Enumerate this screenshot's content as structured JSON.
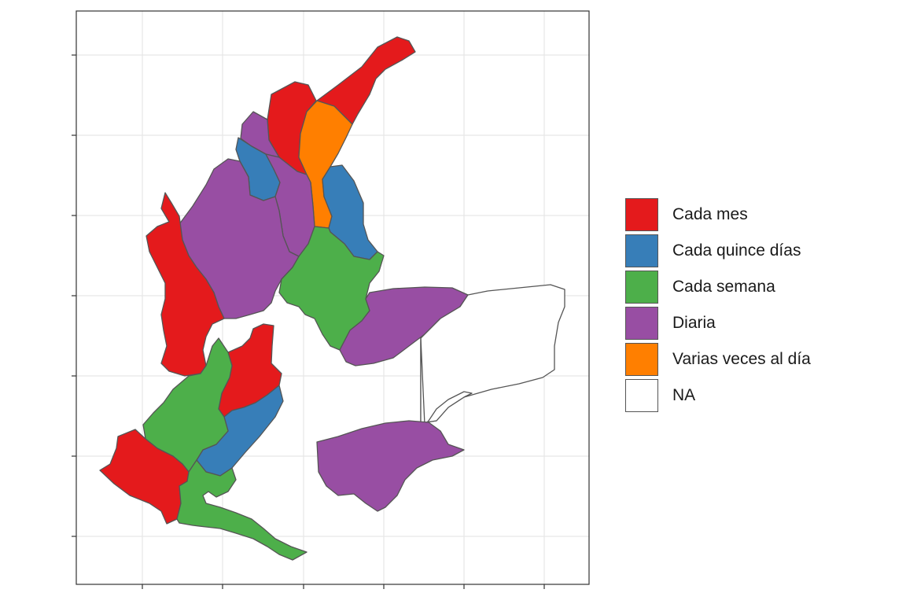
{
  "map": {
    "type": "choropleth",
    "x_ticks": 6,
    "y_ticks": 7,
    "grid": true,
    "region_border_color": "#555555",
    "regions": [
      {
        "category": "Cada mes",
        "color": "#E41A1C"
      },
      {
        "category": "Cada mes",
        "color": "#E41A1C"
      },
      {
        "category": "Varias veces al día",
        "color": "#FF7F00"
      },
      {
        "category": "Diaria",
        "color": "#984EA3"
      },
      {
        "category": "Cada quince días",
        "color": "#377EB8"
      },
      {
        "category": "Cada quince días",
        "color": "#377EB8"
      },
      {
        "category": "Diaria",
        "color": "#984EA3"
      },
      {
        "category": "Diaria",
        "color": "#984EA3"
      },
      {
        "category": "Cada mes",
        "color": "#E41A1C"
      },
      {
        "category": "Cada semana",
        "color": "#4DAF4A"
      },
      {
        "category": "Diaria",
        "color": "#984EA3"
      },
      {
        "category": "NA",
        "color": "#FFFFFF"
      },
      {
        "category": "NA",
        "color": "#FFFFFF"
      },
      {
        "category": "Diaria",
        "color": "#984EA3"
      },
      {
        "category": "Cada mes",
        "color": "#E41A1C"
      },
      {
        "category": "Cada quince días",
        "color": "#377EB8"
      },
      {
        "category": "Cada semana",
        "color": "#4DAF4A"
      },
      {
        "category": "Cada mes",
        "color": "#E41A1C"
      },
      {
        "category": "Cada semana",
        "color": "#4DAF4A"
      }
    ]
  },
  "legend": {
    "items": [
      {
        "label": "Cada mes",
        "color": "#E41A1C"
      },
      {
        "label": "Cada quince días",
        "color": "#377EB8"
      },
      {
        "label": "Cada semana",
        "color": "#4DAF4A"
      },
      {
        "label": "Diaria",
        "color": "#984EA3"
      },
      {
        "label": "Varias veces al día",
        "color": "#FF7F00"
      },
      {
        "label": "NA",
        "color": "#FFFFFF"
      }
    ]
  }
}
